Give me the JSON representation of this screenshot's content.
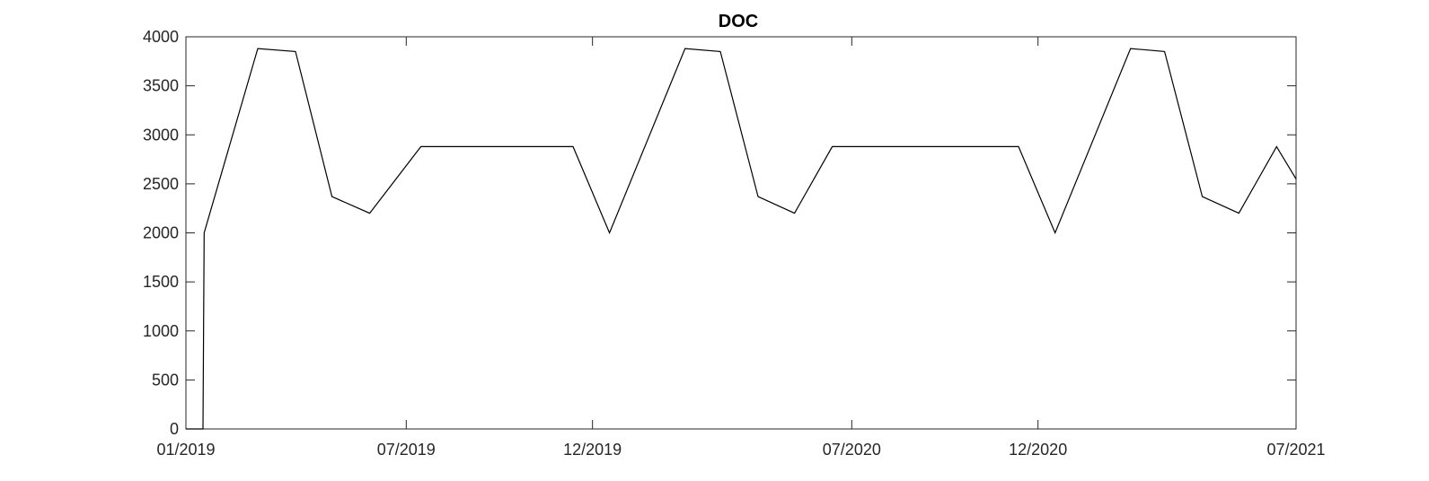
{
  "chart_data": {
    "type": "line",
    "title": "DOC",
    "xlabel": "",
    "ylabel": "",
    "xlim": [
      "2019-01-01",
      "2021-07-01"
    ],
    "ylim": [
      0,
      4000
    ],
    "x_ticks": [
      {
        "date": "2019-01-01",
        "label": "01/2019"
      },
      {
        "date": "2019-07-01",
        "label": "07/2019"
      },
      {
        "date": "2019-12-01",
        "label": "12/2019"
      },
      {
        "date": "2020-07-01",
        "label": "07/2020"
      },
      {
        "date": "2020-12-01",
        "label": "12/2020"
      },
      {
        "date": "2021-07-01",
        "label": "07/2021"
      }
    ],
    "y_ticks": [
      0,
      500,
      1000,
      1500,
      2000,
      2500,
      3000,
      3500,
      4000
    ],
    "grid": false,
    "legend": "none",
    "line_color": "#000000",
    "series": [
      {
        "x": [
          "2019-01-01",
          "2019-01-15",
          "2019-01-16",
          "2019-03-01",
          "2019-04-01",
          "2019-05-01",
          "2019-06-01",
          "2019-07-13",
          "2019-11-15",
          "2019-12-15",
          "2020-02-15",
          "2020-03-15",
          "2020-04-15",
          "2020-05-15",
          "2020-06-15",
          "2020-07-13",
          "2020-11-15",
          "2020-12-15",
          "2021-02-15",
          "2021-03-15",
          "2021-04-15",
          "2021-05-15",
          "2021-06-15",
          "2021-07-01"
        ],
        "y": [
          0,
          0,
          2000,
          3880,
          3850,
          2370,
          2200,
          2880,
          2880,
          2000,
          3880,
          3850,
          2370,
          2200,
          2880,
          2880,
          2880,
          2000,
          3880,
          3850,
          2370,
          2200,
          2880,
          2550
        ]
      }
    ]
  }
}
